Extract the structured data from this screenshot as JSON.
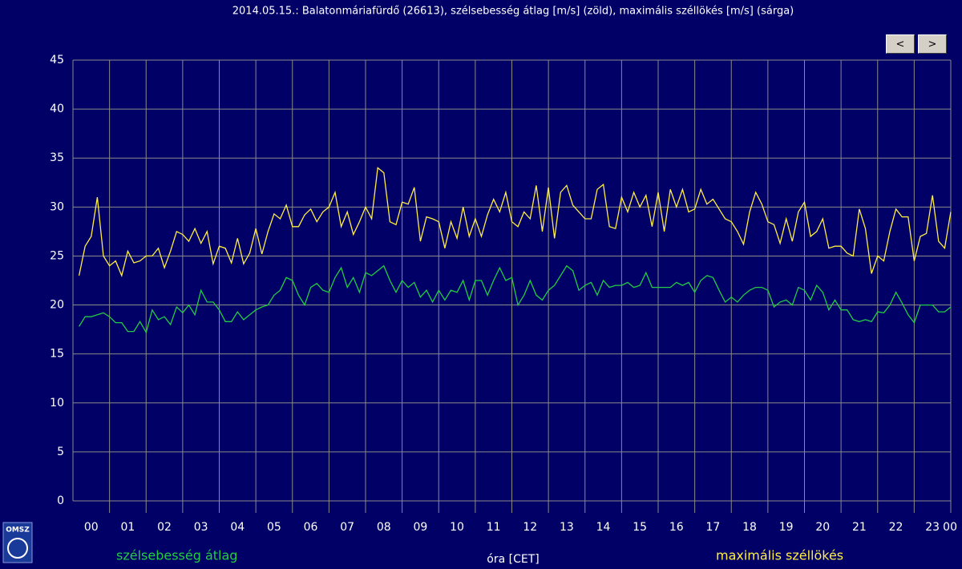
{
  "chart_data": {
    "type": "line",
    "title": "2014.05.15.: Balatonmáriafürdő  (26613), szélsebesség átlag [m/s] (zöld), maximális széllökés [m/s] (sárga)",
    "x_label": "óra [CET]",
    "hour_labels": [
      "00",
      "01",
      "02",
      "03",
      "04",
      "05",
      "06",
      "07",
      "08",
      "09",
      "10",
      "11",
      "12",
      "13",
      "14",
      "15",
      "16",
      "17",
      "18",
      "19",
      "20",
      "21",
      "22",
      "23"
    ],
    "end_label": "00",
    "xlim": [
      0,
      1440
    ],
    "xticks": [
      60,
      120,
      180,
      240,
      300,
      360,
      420,
      480,
      540,
      600,
      660,
      720,
      780,
      840,
      900,
      960,
      1020,
      1080,
      1140,
      1200,
      1260,
      1320,
      1380,
      1440
    ],
    "ylim": [
      0,
      45
    ],
    "yticks": [
      0,
      5,
      10,
      15,
      20,
      25,
      30,
      35,
      40,
      45
    ],
    "grid": true,
    "x": [
      10,
      20,
      30,
      40,
      50,
      60,
      70,
      80,
      90,
      100,
      110,
      120,
      130,
      140,
      150,
      160,
      170,
      180,
      190,
      200,
      210,
      220,
      230,
      240,
      250,
      260,
      270,
      280,
      290,
      300,
      310,
      320,
      330,
      340,
      350,
      360,
      370,
      380,
      390,
      400,
      410,
      420,
      430,
      440,
      450,
      460,
      470,
      480,
      490,
      500,
      510,
      520,
      530,
      540,
      550,
      560,
      570,
      580,
      590,
      600,
      610,
      620,
      630,
      640,
      650,
      660,
      670,
      680,
      690,
      700,
      710,
      720,
      730,
      740,
      750,
      760,
      770,
      780,
      790,
      800,
      810,
      820,
      830,
      840,
      850,
      860,
      870,
      880,
      890,
      900,
      910,
      920,
      930,
      940,
      950,
      960,
      970,
      980,
      990,
      1000,
      1010,
      1020,
      1030,
      1040,
      1050,
      1060,
      1070,
      1080,
      1090,
      1100,
      1110,
      1120,
      1130,
      1140,
      1150,
      1160,
      1170,
      1180,
      1190,
      1200,
      1210,
      1220,
      1230,
      1240,
      1250,
      1260,
      1270,
      1280,
      1290,
      1300,
      1310,
      1320,
      1330,
      1340,
      1350,
      1360,
      1370,
      1380,
      1390,
      1400,
      1410,
      1420,
      1430,
      1440
    ],
    "series": [
      {
        "name": "szélsebesség átlag",
        "color": "#22cc44",
        "values": [
          17.8,
          18.8,
          18.8,
          19,
          19.2,
          18.8,
          18.2,
          18.2,
          17.3,
          17.3,
          18.3,
          17.2,
          19.5,
          18.5,
          18.8,
          18,
          19.8,
          19.2,
          20,
          19,
          21.5,
          20.3,
          20.3,
          19.5,
          18.3,
          18.3,
          19.3,
          18.5,
          19,
          19.5,
          19.8,
          20,
          21,
          21.5,
          22.8,
          22.5,
          21,
          20,
          21.8,
          22.2,
          21.5,
          21.3,
          22.8,
          23.8,
          21.8,
          22.8,
          21.3,
          23.3,
          23,
          23.5,
          24,
          22.5,
          21.3,
          22.5,
          21.8,
          22.3,
          20.8,
          21.5,
          20.3,
          21.5,
          20.5,
          21.5,
          21.3,
          22.5,
          20.5,
          22.5,
          22.5,
          21,
          22.5,
          23.8,
          22.5,
          22.8,
          20,
          21,
          22.5,
          21,
          20.5,
          21.5,
          22,
          23,
          24,
          23.5,
          21.5,
          22,
          22.3,
          21,
          22.5,
          21.8,
          22,
          22,
          22.3,
          21.8,
          22,
          23.3,
          21.8,
          21.8,
          21.8,
          21.8,
          22.3,
          22,
          22.3,
          21.3,
          22.5,
          23,
          22.8,
          21.5,
          20.3,
          20.8,
          20.3,
          21,
          21.5,
          21.8,
          21.8,
          21.5,
          19.8,
          20.3,
          20.5,
          20,
          21.8,
          21.5,
          20.5,
          22,
          21.3,
          19.5,
          20.5,
          19.5,
          19.5,
          18.5,
          18.3,
          18.5,
          18.3,
          19.3,
          19.2,
          20,
          21.3,
          20.2,
          19,
          18.2,
          20,
          20,
          20,
          19.3,
          19.3,
          19.8
        ]
      },
      {
        "name": "maximális széllökés",
        "color": "#ffee44",
        "values": [
          23,
          26,
          27,
          31,
          25,
          24,
          24.5,
          23,
          25.5,
          24.3,
          24.5,
          25,
          25,
          25.8,
          23.8,
          25.5,
          27.5,
          27.2,
          26.5,
          27.8,
          26.3,
          27.5,
          24.2,
          26,
          25.8,
          24.3,
          26.8,
          24.2,
          25.3,
          27.8,
          25.2,
          27.5,
          29.3,
          28.8,
          30.2,
          28,
          28,
          29.2,
          29.8,
          28.5,
          29.5,
          30,
          31.5,
          28,
          29.5,
          27.2,
          28.5,
          30,
          28.8,
          34,
          33.5,
          28.5,
          28.2,
          30.5,
          30.3,
          32,
          26.5,
          29,
          28.8,
          28.5,
          25.8,
          28.5,
          26.8,
          30,
          27,
          28.8,
          27,
          29.2,
          30.8,
          29.5,
          31.5,
          28.5,
          28,
          29.5,
          28.8,
          32.2,
          27.5,
          32,
          26.8,
          31.5,
          32.2,
          30.2,
          29.5,
          28.8,
          28.8,
          31.8,
          32.3,
          28,
          27.8,
          31,
          29.5,
          31.5,
          30,
          31.2,
          28,
          31.5,
          27.5,
          31.8,
          30,
          31.8,
          29.5,
          29.8,
          31.8,
          30.3,
          30.8,
          29.8,
          28.8,
          28.5,
          27.5,
          26.2,
          29.5,
          31.5,
          30.3,
          28.5,
          28.2,
          26.3,
          28.8,
          26.5,
          29.5,
          30.5,
          27,
          27.5,
          28.8,
          25.8,
          26,
          26,
          25.3,
          25,
          29.8,
          27.8,
          23.2,
          25,
          24.5,
          27.5,
          29.8,
          29,
          29,
          24.5,
          27,
          27.3,
          31.2,
          26.5,
          25.8,
          29.5
        ]
      }
    ]
  },
  "logo": "OMSZ",
  "buttons": [
    "<",
    ">"
  ]
}
